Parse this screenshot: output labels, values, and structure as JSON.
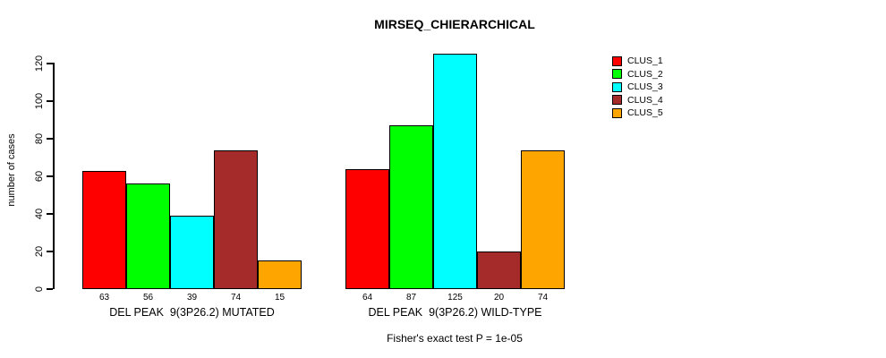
{
  "chart_data": {
    "type": "bar",
    "title": "MIRSEQ_CHIERARCHICAL",
    "ylabel": "number of cases",
    "xlabel": "",
    "ylim": [
      0,
      130
    ],
    "yticks": [
      0,
      20,
      40,
      60,
      80,
      100,
      120
    ],
    "grid": false,
    "legend_position": "top-right",
    "bar_value_labels": true,
    "categories": [
      "DEL PEAK  9(3P26.2) MUTATED",
      "DEL PEAK  9(3P26.2) WILD-TYPE"
    ],
    "series": [
      {
        "name": "CLUS_1",
        "color": "#FF0000",
        "values": [
          63,
          64
        ]
      },
      {
        "name": "CLUS_2",
        "color": "#00FF00",
        "values": [
          56,
          87
        ]
      },
      {
        "name": "CLUS_3",
        "color": "#00FFFF",
        "values": [
          39,
          125
        ]
      },
      {
        "name": "CLUS_4",
        "color": "#A52A2A",
        "values": [
          74,
          20
        ]
      },
      {
        "name": "CLUS_5",
        "color": "#FFA500",
        "values": [
          15,
          74
        ]
      }
    ],
    "annotation": "Fisher's exact test P = 1e-05"
  }
}
